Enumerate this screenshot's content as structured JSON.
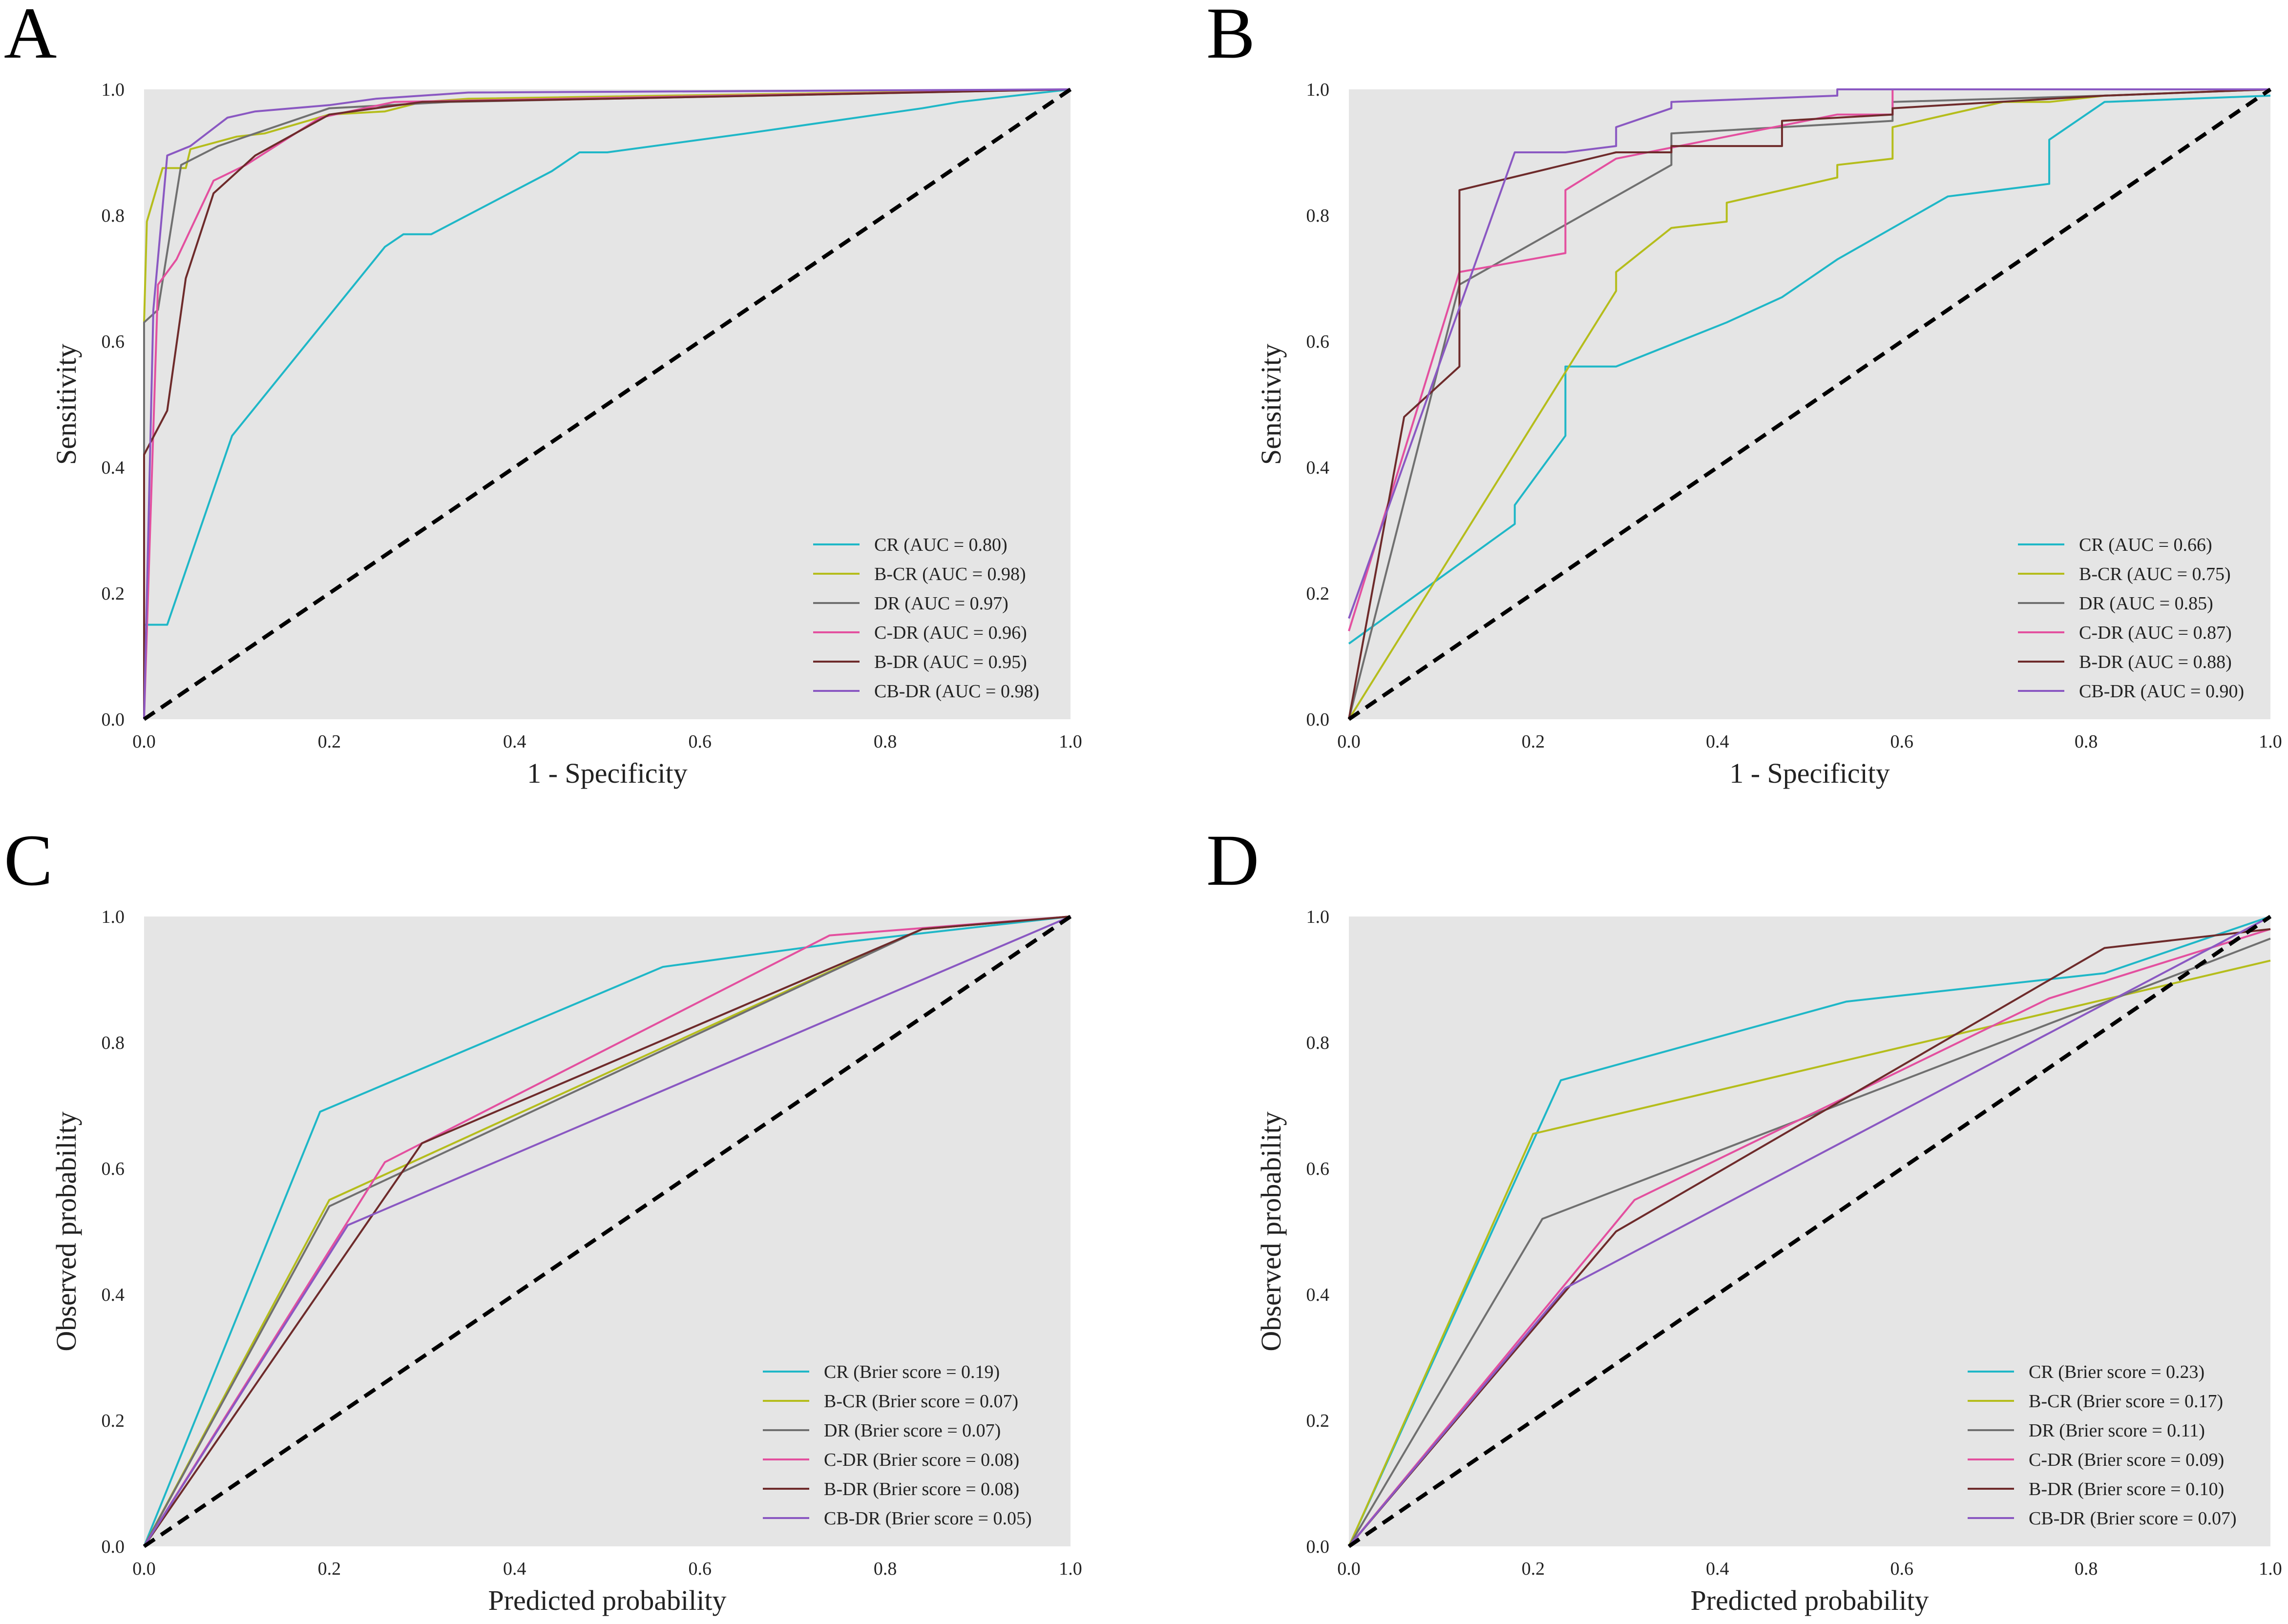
{
  "chart_data": [
    {
      "panel_letter": "A",
      "type": "line",
      "xlabel": "1 - Specificity",
      "ylabel": "Sensitivity",
      "xlim": [
        0.0,
        1.0
      ],
      "ylim": [
        0.0,
        1.0
      ],
      "xticks": [
        "0.0",
        "0.2",
        "0.4",
        "0.6",
        "0.8",
        "1.0"
      ],
      "yticks": [
        "0.0",
        "0.2",
        "0.4",
        "0.6",
        "0.8",
        "1.0"
      ],
      "grid": false,
      "legend": "bottom-right",
      "reference_line": {
        "name": "chance diagonal",
        "style": "dashed",
        "points": [
          [
            0,
            0
          ],
          [
            1,
            1
          ]
        ]
      },
      "series": [
        {
          "name": "CR",
          "label": "CR (AUC = 0.80)",
          "color": "#1fb7c7",
          "points": [
            [
              0,
              0.15
            ],
            [
              0.025,
              0.15
            ],
            [
              0.095,
              0.45
            ],
            [
              0.26,
              0.75
            ],
            [
              0.28,
              0.77
            ],
            [
              0.31,
              0.77
            ],
            [
              0.44,
              0.87
            ],
            [
              0.47,
              0.9
            ],
            [
              0.5,
              0.9
            ],
            [
              0.65,
              0.93
            ],
            [
              0.84,
              0.97
            ],
            [
              0.88,
              0.98
            ],
            [
              1,
              1
            ]
          ]
        },
        {
          "name": "B-CR",
          "label": "B-CR (AUC = 0.98)",
          "color": "#b5bd1c",
          "points": [
            [
              0,
              0
            ],
            [
              0,
              0.63
            ],
            [
              0.003,
              0.79
            ],
            [
              0.02,
              0.875
            ],
            [
              0.045,
              0.875
            ],
            [
              0.05,
              0.905
            ],
            [
              0.1,
              0.925
            ],
            [
              0.13,
              0.93
            ],
            [
              0.2,
              0.96
            ],
            [
              0.26,
              0.965
            ],
            [
              0.3,
              0.98
            ],
            [
              0.35,
              0.985
            ],
            [
              1,
              1
            ]
          ]
        },
        {
          "name": "DR",
          "label": "DR (AUC = 0.97)",
          "color": "#707070",
          "points": [
            [
              0,
              0
            ],
            [
              0,
              0.63
            ],
            [
              0.015,
              0.65
            ],
            [
              0.04,
              0.88
            ],
            [
              0.08,
              0.91
            ],
            [
              0.2,
              0.97
            ],
            [
              0.33,
              0.98
            ],
            [
              1,
              1
            ]
          ]
        },
        {
          "name": "C-DR",
          "label": "C-DR (AUC = 0.96)",
          "color": "#e3509f",
          "points": [
            [
              0,
              0
            ],
            [
              0.015,
              0.69
            ],
            [
              0.035,
              0.73
            ],
            [
              0.075,
              0.855
            ],
            [
              0.11,
              0.88
            ],
            [
              0.19,
              0.955
            ],
            [
              0.27,
              0.98
            ],
            [
              1,
              1
            ]
          ]
        },
        {
          "name": "B-DR",
          "label": "B-DR (AUC = 0.95)",
          "color": "#6e2b2b",
          "points": [
            [
              0,
              0
            ],
            [
              0,
              0.42
            ],
            [
              0.025,
              0.49
            ],
            [
              0.045,
              0.7
            ],
            [
              0.075,
              0.835
            ],
            [
              0.12,
              0.895
            ],
            [
              0.2,
              0.96
            ],
            [
              0.3,
              0.98
            ],
            [
              0.5,
              0.985
            ],
            [
              1,
              1
            ]
          ]
        },
        {
          "name": "CB-DR",
          "label": "CB-DR (AUC = 0.98)",
          "color": "#8a58c2",
          "points": [
            [
              0,
              0
            ],
            [
              0.01,
              0.65
            ],
            [
              0.025,
              0.895
            ],
            [
              0.05,
              0.91
            ],
            [
              0.09,
              0.955
            ],
            [
              0.12,
              0.965
            ],
            [
              0.2,
              0.975
            ],
            [
              0.25,
              0.985
            ],
            [
              0.35,
              0.995
            ],
            [
              1,
              1
            ]
          ]
        }
      ]
    },
    {
      "panel_letter": "B",
      "type": "line",
      "xlabel": "1 - Specificity",
      "ylabel": "Sensitivity",
      "xlim": [
        0.0,
        1.0
      ],
      "ylim": [
        0.0,
        1.0
      ],
      "xticks": [
        "0.0",
        "0.2",
        "0.4",
        "0.6",
        "0.8",
        "1.0"
      ],
      "yticks": [
        "0.0",
        "0.2",
        "0.4",
        "0.6",
        "0.8",
        "1.0"
      ],
      "grid": false,
      "legend": "bottom-right",
      "reference_line": {
        "name": "chance diagonal",
        "style": "dashed",
        "points": [
          [
            0,
            0
          ],
          [
            1,
            1
          ]
        ]
      },
      "series": [
        {
          "name": "CR",
          "label": "CR (AUC = 0.66)",
          "color": "#1fb7c7",
          "points": [
            [
              0,
              0.12
            ],
            [
              0.18,
              0.31
            ],
            [
              0.18,
              0.34
            ],
            [
              0.235,
              0.45
            ],
            [
              0.235,
              0.56
            ],
            [
              0.29,
              0.56
            ],
            [
              0.41,
              0.63
            ],
            [
              0.47,
              0.67
            ],
            [
              0.53,
              0.73
            ],
            [
              0.65,
              0.83
            ],
            [
              0.76,
              0.85
            ],
            [
              0.76,
              0.92
            ],
            [
              0.82,
              0.98
            ],
            [
              1,
              0.99
            ]
          ]
        },
        {
          "name": "B-CR",
          "label": "B-CR (AUC = 0.75)",
          "color": "#b5bd1c",
          "points": [
            [
              0,
              0
            ],
            [
              0.29,
              0.68
            ],
            [
              0.29,
              0.71
            ],
            [
              0.35,
              0.78
            ],
            [
              0.41,
              0.79
            ],
            [
              0.41,
              0.82
            ],
            [
              0.53,
              0.86
            ],
            [
              0.53,
              0.88
            ],
            [
              0.59,
              0.89
            ],
            [
              0.59,
              0.94
            ],
            [
              0.71,
              0.98
            ],
            [
              0.76,
              0.98
            ],
            [
              0.82,
              0.99
            ],
            [
              1,
              1
            ]
          ]
        },
        {
          "name": "DR",
          "label": "DR (AUC = 0.85)",
          "color": "#707070",
          "points": [
            [
              0,
              0
            ],
            [
              0.12,
              0.69
            ],
            [
              0.35,
              0.88
            ],
            [
              0.35,
              0.93
            ],
            [
              0.59,
              0.95
            ],
            [
              0.59,
              0.98
            ],
            [
              0.82,
              0.99
            ],
            [
              1,
              1
            ]
          ]
        },
        {
          "name": "C-DR",
          "label": "C-DR (AUC = 0.87)",
          "color": "#e3509f",
          "points": [
            [
              0,
              0.14
            ],
            [
              0.12,
              0.71
            ],
            [
              0.235,
              0.74
            ],
            [
              0.235,
              0.84
            ],
            [
              0.29,
              0.89
            ],
            [
              0.53,
              0.96
            ],
            [
              0.59,
              0.96
            ],
            [
              0.59,
              1.0
            ],
            [
              1,
              1
            ]
          ]
        },
        {
          "name": "B-DR",
          "label": "B-DR (AUC = 0.88)",
          "color": "#6e2b2b",
          "points": [
            [
              0,
              0
            ],
            [
              0.06,
              0.48
            ],
            [
              0.12,
              0.56
            ],
            [
              0.12,
              0.84
            ],
            [
              0.29,
              0.9
            ],
            [
              0.35,
              0.9
            ],
            [
              0.35,
              0.91
            ],
            [
              0.47,
              0.91
            ],
            [
              0.47,
              0.95
            ],
            [
              0.59,
              0.96
            ],
            [
              0.59,
              0.97
            ],
            [
              0.82,
              0.99
            ],
            [
              1,
              1
            ]
          ]
        },
        {
          "name": "CB-DR",
          "label": "CB-DR (AUC = 0.90)",
          "color": "#8a58c2",
          "points": [
            [
              0,
              0.16
            ],
            [
              0.18,
              0.9
            ],
            [
              0.235,
              0.9
            ],
            [
              0.29,
              0.91
            ],
            [
              0.29,
              0.94
            ],
            [
              0.35,
              0.97
            ],
            [
              0.35,
              0.98
            ],
            [
              0.53,
              0.99
            ],
            [
              0.53,
              1.0
            ],
            [
              1,
              1
            ]
          ]
        }
      ]
    },
    {
      "panel_letter": "C",
      "type": "line",
      "xlabel": "Predicted probability",
      "ylabel": "Observed probability",
      "xlim": [
        0.0,
        1.0
      ],
      "ylim": [
        0.0,
        1.0
      ],
      "xticks": [
        "0.0",
        "0.2",
        "0.4",
        "0.6",
        "0.8",
        "1.0"
      ],
      "yticks": [
        "0.0",
        "0.2",
        "0.4",
        "0.6",
        "0.8",
        "1.0"
      ],
      "grid": false,
      "legend": "bottom-right",
      "reference_line": {
        "name": "perfect calibration",
        "style": "dashed",
        "points": [
          [
            0,
            0
          ],
          [
            1,
            1
          ]
        ]
      },
      "series": [
        {
          "name": "CR",
          "label": "CR (Brier score = 0.19)",
          "color": "#1fb7c7",
          "points": [
            [
              0,
              0
            ],
            [
              0.19,
              0.69
            ],
            [
              0.56,
              0.92
            ],
            [
              0.76,
              0.96
            ],
            [
              1,
              1
            ]
          ]
        },
        {
          "name": "B-CR",
          "label": "B-CR (Brier score = 0.07)",
          "color": "#b5bd1c",
          "points": [
            [
              0,
              0
            ],
            [
              0.2,
              0.55
            ],
            [
              0.84,
              0.98
            ],
            [
              1,
              1
            ]
          ]
        },
        {
          "name": "DR",
          "label": "DR (Brier score = 0.07)",
          "color": "#707070",
          "points": [
            [
              0,
              0
            ],
            [
              0.2,
              0.54
            ],
            [
              0.84,
              0.98
            ],
            [
              1,
              1
            ]
          ]
        },
        {
          "name": "C-DR",
          "label": "C-DR (Brier score = 0.08)",
          "color": "#e3509f",
          "points": [
            [
              0,
              0
            ],
            [
              0.26,
              0.61
            ],
            [
              0.74,
              0.97
            ],
            [
              1,
              1
            ]
          ]
        },
        {
          "name": "B-DR",
          "label": "B-DR (Brier score = 0.08)",
          "color": "#6e2b2b",
          "points": [
            [
              0,
              0
            ],
            [
              0.3,
              0.64
            ],
            [
              0.84,
              0.98
            ],
            [
              1,
              1
            ]
          ]
        },
        {
          "name": "CB-DR",
          "label": "CB-DR (Brier score = 0.05)",
          "color": "#8a58c2",
          "points": [
            [
              0,
              0
            ],
            [
              0.22,
              0.51
            ],
            [
              1,
              1
            ]
          ]
        }
      ]
    },
    {
      "panel_letter": "D",
      "type": "line",
      "xlabel": "Predicted probability",
      "ylabel": "Observed probability",
      "xlim": [
        0.0,
        1.0
      ],
      "ylim": [
        0.0,
        1.0
      ],
      "xticks": [
        "0.0",
        "0.2",
        "0.4",
        "0.6",
        "0.8",
        "1.0"
      ],
      "yticks": [
        "0.0",
        "0.2",
        "0.4",
        "0.6",
        "0.8",
        "1.0"
      ],
      "grid": false,
      "legend": "bottom-right",
      "reference_line": {
        "name": "perfect calibration",
        "style": "dashed",
        "points": [
          [
            0,
            0
          ],
          [
            1,
            1
          ]
        ]
      },
      "series": [
        {
          "name": "CR",
          "label": "CR (Brier score = 0.23)",
          "color": "#1fb7c7",
          "points": [
            [
              0,
              0
            ],
            [
              0.23,
              0.74
            ],
            [
              0.54,
              0.865
            ],
            [
              0.82,
              0.91
            ],
            [
              1,
              1
            ]
          ]
        },
        {
          "name": "B-CR",
          "label": "B-CR (Brier score = 0.17)",
          "color": "#b5bd1c",
          "points": [
            [
              0,
              0
            ],
            [
              0.2,
              0.655
            ],
            [
              1,
              0.93
            ]
          ]
        },
        {
          "name": "DR",
          "label": "DR (Brier score = 0.11)",
          "color": "#707070",
          "points": [
            [
              0,
              0
            ],
            [
              0.21,
              0.52
            ],
            [
              1,
              0.965
            ]
          ]
        },
        {
          "name": "C-DR",
          "label": "C-DR (Brier score = 0.09)",
          "color": "#e3509f",
          "points": [
            [
              0,
              0
            ],
            [
              0.31,
              0.55
            ],
            [
              0.76,
              0.87
            ],
            [
              1,
              0.98
            ]
          ]
        },
        {
          "name": "B-DR",
          "label": "B-DR (Brier score = 0.10)",
          "color": "#6e2b2b",
          "points": [
            [
              0,
              0
            ],
            [
              0.29,
              0.5
            ],
            [
              0.82,
              0.95
            ],
            [
              1,
              0.98
            ]
          ]
        },
        {
          "name": "CB-DR",
          "label": "CB-DR (Brier score = 0.07)",
          "color": "#8a58c2",
          "points": [
            [
              0,
              0
            ],
            [
              0.235,
              0.41
            ],
            [
              1,
              1
            ]
          ]
        }
      ]
    }
  ]
}
